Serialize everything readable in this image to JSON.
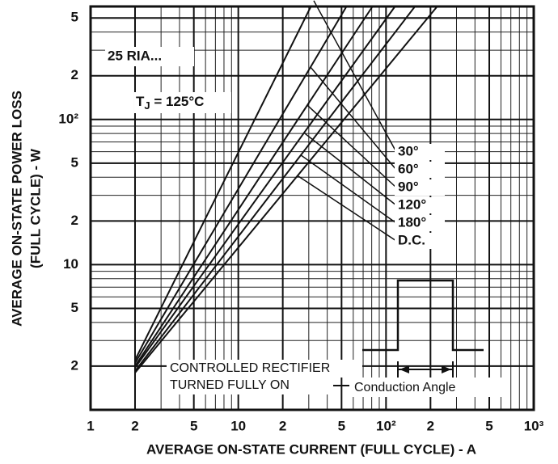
{
  "chart_data": {
    "type": "line",
    "title_annotation": "25 RIA...",
    "tj_label": {
      "base": "T",
      "sub": "J",
      "rest": " = 125°C"
    },
    "annotations": [
      "CONTROLLED RECTIFIER",
      "TURNED FULLY ON",
      "Conduction Angle"
    ],
    "xlabel": "AVERAGE ON-STATE CURRENT (FULL CYCLE) - A",
    "ylabel": [
      "AVERAGE ON-STATE POWER LOSS",
      "(FULL CYCLE) - W"
    ],
    "xscale": "log",
    "yscale": "log",
    "grid": true,
    "xlim": [
      1,
      1000
    ],
    "ylim": [
      1,
      600
    ],
    "xticks": [
      1,
      2,
      5,
      10,
      {
        "value": 20,
        "label": "2"
      },
      {
        "value": 50,
        "label": "5"
      },
      {
        "value": 100,
        "label": "10²"
      },
      {
        "value": 200,
        "label": "2"
      },
      {
        "value": 500,
        "label": "5"
      },
      {
        "value": 1000,
        "label": "10³"
      }
    ],
    "yticks": [
      2,
      5,
      10,
      {
        "value": 20,
        "label": "2"
      },
      {
        "value": 50,
        "label": "5"
      },
      {
        "value": 100,
        "label": "10²"
      },
      {
        "value": 200,
        "label": "2"
      },
      {
        "value": 500,
        "label": "5"
      }
    ],
    "series": [
      {
        "name": "30°",
        "color": "#111111",
        "x": [
          2,
          31
        ],
        "values": [
          2.2,
          600
        ]
      },
      {
        "name": "60°",
        "color": "#111111",
        "x": [
          2,
          54
        ],
        "values": [
          2.1,
          600
        ]
      },
      {
        "name": "90°",
        "color": "#111111",
        "x": [
          2,
          81
        ],
        "values": [
          2.0,
          600
        ]
      },
      {
        "name": "120°",
        "color": "#111111",
        "x": [
          2,
          115
        ],
        "values": [
          1.95,
          600
        ]
      },
      {
        "name": "180°",
        "color": "#111111",
        "x": [
          2,
          157
        ],
        "values": [
          1.85,
          600
        ]
      },
      {
        "name": "D.C.",
        "color": "#111111",
        "x": [
          2,
          222
        ],
        "values": [
          1.8,
          600
        ]
      }
    ]
  }
}
